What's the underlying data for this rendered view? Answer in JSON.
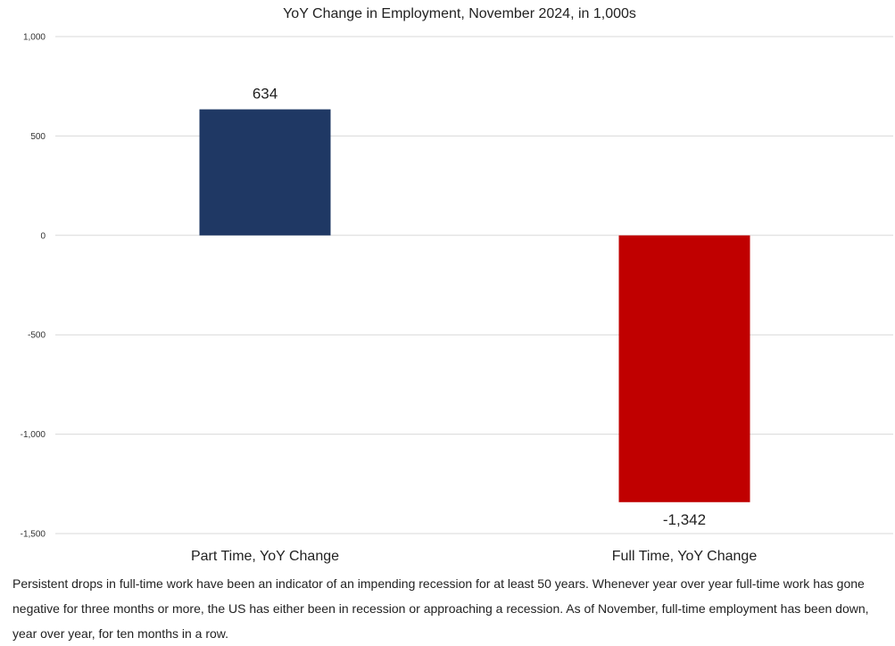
{
  "chart_data": {
    "type": "bar",
    "title": "YoY Change in Employment, November 2024, in 1,000s",
    "categories": [
      "Part Time, YoY Change",
      "Full Time, YoY Change"
    ],
    "values": [
      634,
      -1342
    ],
    "data_labels": [
      "634",
      "-1,342"
    ],
    "colors": [
      "#1f3864",
      "#c00000"
    ],
    "ylim": [
      -1500,
      1000
    ],
    "yticks": [
      1000,
      500,
      0,
      -500,
      -1000,
      -1500
    ],
    "ytick_labels": [
      "1,000",
      "500",
      "0",
      "-500",
      "-1,000",
      "-1,500"
    ],
    "grid": true,
    "legend": "none",
    "xlabel": "",
    "ylabel": ""
  },
  "caption": "Persistent drops in full-time work have been an indicator of an impending recession for at least 50 years. Whenever year over year full-time work has gone negative for three months or more, the US has either been in recession or approaching a recession. As of November, full-time employment has been down, year over year, for ten months in a row."
}
